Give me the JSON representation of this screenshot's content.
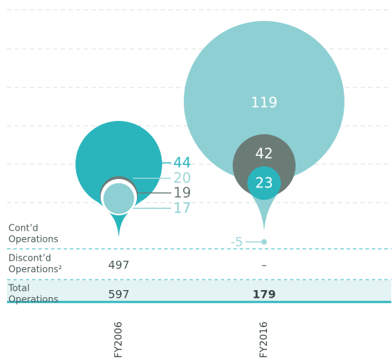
{
  "chart_data": {
    "type": "bubble",
    "periods": [
      {
        "label": "FY2006",
        "bubbles": [
          {
            "value": 44,
            "color": "#2ab5bd"
          },
          {
            "value": 20,
            "color": "#ffffff",
            "label_color": "#9fd6da"
          },
          {
            "value": 19,
            "color": "#6b7c77"
          },
          {
            "value": 17,
            "color": "#8ecfd3"
          }
        ],
        "discontinued": 497,
        "total": 597
      },
      {
        "label": "FY2016",
        "bubbles": [
          {
            "value": 119,
            "color": "#8ecfd3"
          },
          {
            "value": 42,
            "color": "#6b7c77"
          },
          {
            "value": 23,
            "color": "#2ab5bd"
          },
          {
            "value": -5,
            "color": "#9fd6da"
          }
        ],
        "discontinued": "–",
        "total": 179
      }
    ],
    "rows": [
      [
        "Cont’d",
        "Operations"
      ],
      [
        "Discont’d",
        "Operations²"
      ],
      [
        "Total",
        "Operations"
      ]
    ],
    "grid": true
  }
}
